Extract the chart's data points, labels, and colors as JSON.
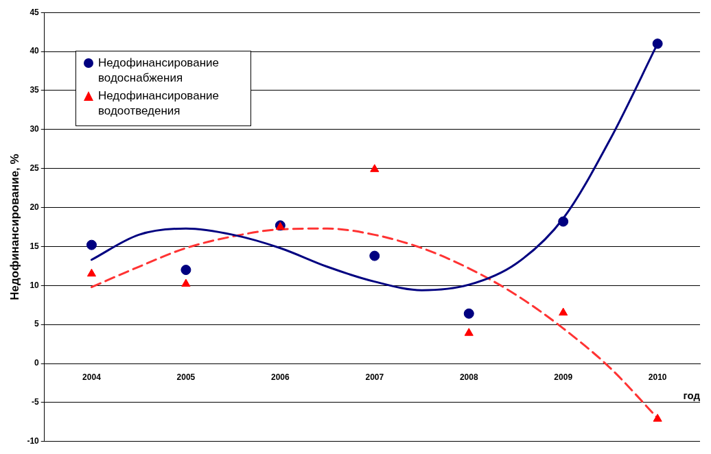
{
  "chart_data": {
    "type": "scatter",
    "ylabel": "Недофинансирование, %",
    "xlabel": "год",
    "xlim": [
      2003.5,
      2010.45
    ],
    "xticks": [
      2004,
      2005,
      2006,
      2007,
      2008,
      2009,
      2010
    ],
    "ylim": [
      -10,
      45
    ],
    "yticks": [
      -10,
      -5,
      0,
      5,
      10,
      15,
      20,
      25,
      30,
      35,
      40,
      45
    ],
    "grid": "y",
    "legend": "top left",
    "series": [
      {
        "name": "Недофинансирование водоснабжения",
        "color": "#000080",
        "marker": "circle",
        "x": [
          2004,
          2005,
          2006,
          2007,
          2008,
          2009,
          2010
        ],
        "values": [
          15.2,
          12.0,
          17.7,
          13.8,
          6.4,
          18.2,
          41.0
        ]
      },
      {
        "name": "Недофинансирование водоотведения",
        "color": "#ff0000",
        "marker": "triangle",
        "x": [
          2004,
          2005,
          2006,
          2007,
          2008,
          2009,
          2010
        ],
        "values": [
          11.5,
          10.2,
          17.5,
          24.9,
          3.9,
          6.5,
          -7.1
        ]
      },
      {
        "type": "line",
        "color": "#000080",
        "marker": "none",
        "line_style": "solid",
        "x": [
          2004,
          2004.5,
          2005,
          2005.5,
          2006,
          2006.5,
          2007,
          2007.5,
          2008,
          2008.5,
          2009,
          2009.5,
          2010
        ],
        "values": [
          13.3,
          16.5,
          17.3,
          16.5,
          14.8,
          12.4,
          10.5,
          9.4,
          10.1,
          12.8,
          18.6,
          28.8,
          41.0
        ]
      },
      {
        "type": "line",
        "color": "#ff3333",
        "marker": "none",
        "line_style": "dashed",
        "x": [
          2004,
          2004.5,
          2005,
          2005.5,
          2006,
          2006.5,
          2007,
          2007.5,
          2008,
          2008.5,
          2009,
          2009.5,
          2010
        ],
        "values": [
          9.8,
          12.4,
          14.8,
          16.3,
          17.2,
          17.3,
          16.5,
          14.8,
          12.2,
          8.8,
          4.5,
          -0.6,
          -7.0
        ]
      }
    ]
  }
}
